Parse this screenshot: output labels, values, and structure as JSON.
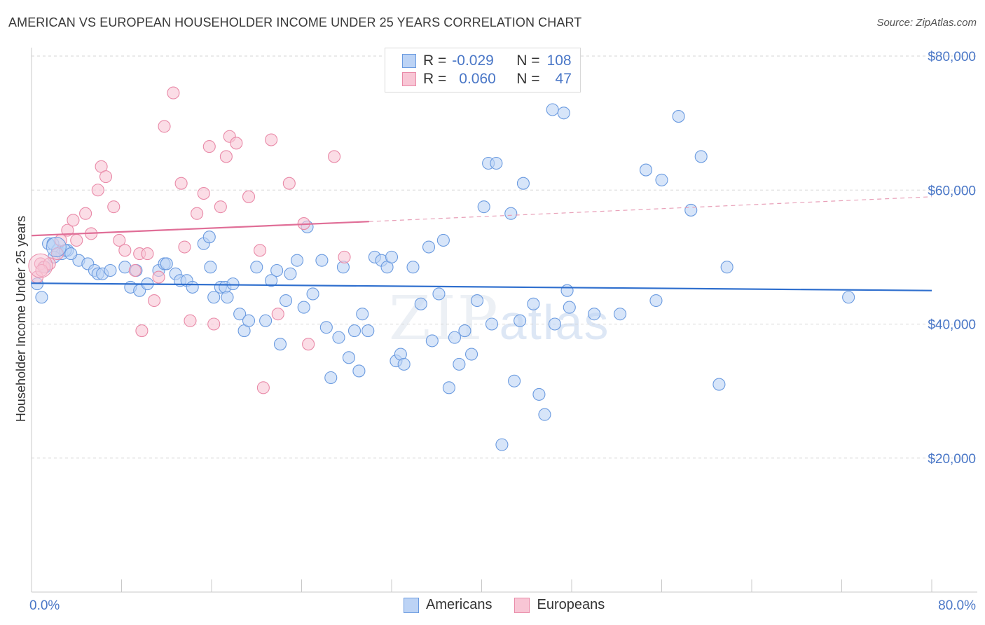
{
  "title": "AMERICAN VS EUROPEAN HOUSEHOLDER INCOME UNDER 25 YEARS CORRELATION CHART",
  "source": "Source: ZipAtlas.com",
  "watermark": {
    "zip": "ZIP",
    "atlas": "atlas"
  },
  "legend": {
    "r_label": "R =",
    "n_label": "N =",
    "rows": [
      {
        "r": "-0.029",
        "n": "108",
        "color": "#6b9be0",
        "fill": "#bcd3f5"
      },
      {
        "r": "0.060",
        "n": "47",
        "color": "#e98aa8",
        "fill": "#f8c6d5"
      }
    ]
  },
  "bottom_legend": [
    {
      "label": "Americans",
      "color": "#6b9be0",
      "fill": "#bcd3f5"
    },
    {
      "label": "Europeans",
      "color": "#e98aa8",
      "fill": "#f8c6d5"
    }
  ],
  "chart_data": {
    "type": "scatter",
    "title": "AMERICAN VS EUROPEAN HOUSEHOLDER INCOME UNDER 25 YEARS CORRELATION CHART",
    "xlabel": "",
    "ylabel": "Householder Income Under 25 years",
    "xlim": [
      0,
      80
    ],
    "ylim": [
      0,
      80000
    ],
    "x_tick_labels": [
      "0.0%",
      "80.0%"
    ],
    "y_ticks": [
      20000,
      40000,
      60000,
      80000
    ],
    "y_tick_labels": [
      "$20,000",
      "$40,000",
      "$60,000",
      "$80,000"
    ],
    "grid": "horizontal dashed",
    "legend_position": "top-center",
    "series": [
      {
        "name": "Americans",
        "color": "#6b9be0",
        "fill": "#bcd3f5",
        "trend": {
          "x0": 0,
          "y0": 46100,
          "x1": 80,
          "y1": 45000,
          "dashed_from": null
        },
        "points": [
          [
            0.5,
            46000
          ],
          [
            0.9,
            44000
          ],
          [
            1.5,
            52000
          ],
          [
            2.3,
            51000
          ],
          [
            2.7,
            50500
          ],
          [
            3.2,
            51000
          ],
          [
            3.0,
            51000
          ],
          [
            4.2,
            49500
          ],
          [
            5.0,
            49000
          ],
          [
            5.6,
            48000
          ],
          [
            5.9,
            47500
          ],
          [
            6.3,
            47500
          ],
          [
            7.0,
            48000
          ],
          [
            8.3,
            48500
          ],
          [
            8.8,
            45500
          ],
          [
            9.3,
            48000
          ],
          [
            9.6,
            45000
          ],
          [
            10.3,
            46000
          ],
          [
            11.3,
            48000
          ],
          [
            11.8,
            49000
          ],
          [
            12.0,
            49000
          ],
          [
            12.8,
            47500
          ],
          [
            13.2,
            46500
          ],
          [
            13.8,
            46500
          ],
          [
            14.3,
            45500
          ],
          [
            15.3,
            52000
          ],
          [
            15.8,
            53000
          ],
          [
            15.9,
            48500
          ],
          [
            16.2,
            44000
          ],
          [
            16.8,
            45500
          ],
          [
            17.2,
            45500
          ],
          [
            17.4,
            44000
          ],
          [
            17.9,
            46000
          ],
          [
            18.5,
            41500
          ],
          [
            18.9,
            39000
          ],
          [
            19.3,
            40500
          ],
          [
            20.0,
            48500
          ],
          [
            20.8,
            40500
          ],
          [
            21.3,
            46500
          ],
          [
            21.8,
            48000
          ],
          [
            22.1,
            37000
          ],
          [
            22.6,
            43500
          ],
          [
            23.0,
            47500
          ],
          [
            23.6,
            49500
          ],
          [
            24.2,
            42500
          ],
          [
            24.5,
            54500
          ],
          [
            25.0,
            44500
          ],
          [
            25.8,
            49500
          ],
          [
            26.2,
            39500
          ],
          [
            26.6,
            32000
          ],
          [
            27.3,
            38000
          ],
          [
            27.7,
            48500
          ],
          [
            28.2,
            35000
          ],
          [
            28.7,
            39000
          ],
          [
            29.1,
            33000
          ],
          [
            29.4,
            41500
          ],
          [
            29.9,
            39000
          ],
          [
            30.5,
            50000
          ],
          [
            31.1,
            49500
          ],
          [
            31.6,
            48500
          ],
          [
            32.0,
            50000
          ],
          [
            32.4,
            34500
          ],
          [
            32.8,
            35500
          ],
          [
            33.1,
            34000
          ],
          [
            33.9,
            48500
          ],
          [
            34.6,
            43000
          ],
          [
            35.3,
            51500
          ],
          [
            35.6,
            37500
          ],
          [
            36.2,
            44500
          ],
          [
            36.6,
            52500
          ],
          [
            37.1,
            30500
          ],
          [
            37.6,
            38000
          ],
          [
            38.0,
            34000
          ],
          [
            38.5,
            39000
          ],
          [
            39.1,
            35500
          ],
          [
            39.6,
            43500
          ],
          [
            40.2,
            57500
          ],
          [
            40.6,
            64000
          ],
          [
            40.9,
            40000
          ],
          [
            41.3,
            64000
          ],
          [
            41.8,
            22000
          ],
          [
            42.6,
            56500
          ],
          [
            42.9,
            31500
          ],
          [
            43.4,
            40500
          ],
          [
            43.7,
            61000
          ],
          [
            44.6,
            43000
          ],
          [
            45.1,
            29500
          ],
          [
            45.6,
            26500
          ],
          [
            46.3,
            72000
          ],
          [
            46.5,
            40000
          ],
          [
            47.3,
            71500
          ],
          [
            47.6,
            45000
          ],
          [
            47.8,
            42500
          ],
          [
            50.0,
            41500
          ],
          [
            52.3,
            41500
          ],
          [
            54.6,
            63000
          ],
          [
            55.5,
            43500
          ],
          [
            56.0,
            61500
          ],
          [
            57.5,
            71000
          ],
          [
            58.6,
            57000
          ],
          [
            59.5,
            65000
          ],
          [
            61.1,
            31000
          ],
          [
            61.8,
            48500
          ],
          [
            72.6,
            44000
          ],
          [
            1.2,
            48500
          ],
          [
            1.9,
            52000
          ],
          [
            3.5,
            50500
          ],
          [
            2.0,
            50000
          ]
        ]
      },
      {
        "name": "Europeans",
        "color": "#e98aa8",
        "fill": "#f8c6d5",
        "trend": {
          "x0": 0,
          "y0": 53200,
          "x1": 30,
          "y1": 55300,
          "dashed_to": 80,
          "dashed_y1": 59000
        },
        "points": [
          [
            0.5,
            47000
          ],
          [
            0.8,
            49000
          ],
          [
            1.1,
            48500
          ],
          [
            1.6,
            49000
          ],
          [
            2.3,
            50500
          ],
          [
            2.6,
            52500
          ],
          [
            3.2,
            54000
          ],
          [
            3.7,
            55500
          ],
          [
            4.0,
            52500
          ],
          [
            4.8,
            56500
          ],
          [
            5.3,
            53500
          ],
          [
            5.9,
            60000
          ],
          [
            6.2,
            63500
          ],
          [
            6.6,
            62000
          ],
          [
            7.3,
            57500
          ],
          [
            7.8,
            52500
          ],
          [
            8.3,
            51000
          ],
          [
            9.2,
            48000
          ],
          [
            9.6,
            50500
          ],
          [
            9.8,
            39000
          ],
          [
            10.3,
            50500
          ],
          [
            10.9,
            43500
          ],
          [
            11.3,
            47000
          ],
          [
            11.8,
            69500
          ],
          [
            12.6,
            74500
          ],
          [
            13.3,
            61000
          ],
          [
            13.6,
            51500
          ],
          [
            14.1,
            40500
          ],
          [
            14.7,
            56500
          ],
          [
            15.3,
            59500
          ],
          [
            15.8,
            66500
          ],
          [
            16.2,
            40000
          ],
          [
            16.8,
            57500
          ],
          [
            17.3,
            65000
          ],
          [
            17.6,
            68000
          ],
          [
            18.2,
            67000
          ],
          [
            19.3,
            59000
          ],
          [
            20.3,
            51000
          ],
          [
            20.6,
            30500
          ],
          [
            21.3,
            67500
          ],
          [
            21.9,
            41500
          ],
          [
            22.9,
            61000
          ],
          [
            24.2,
            55000
          ],
          [
            24.6,
            37000
          ],
          [
            26.9,
            65000
          ],
          [
            27.8,
            50000
          ],
          [
            0.9,
            48000
          ]
        ]
      }
    ]
  }
}
